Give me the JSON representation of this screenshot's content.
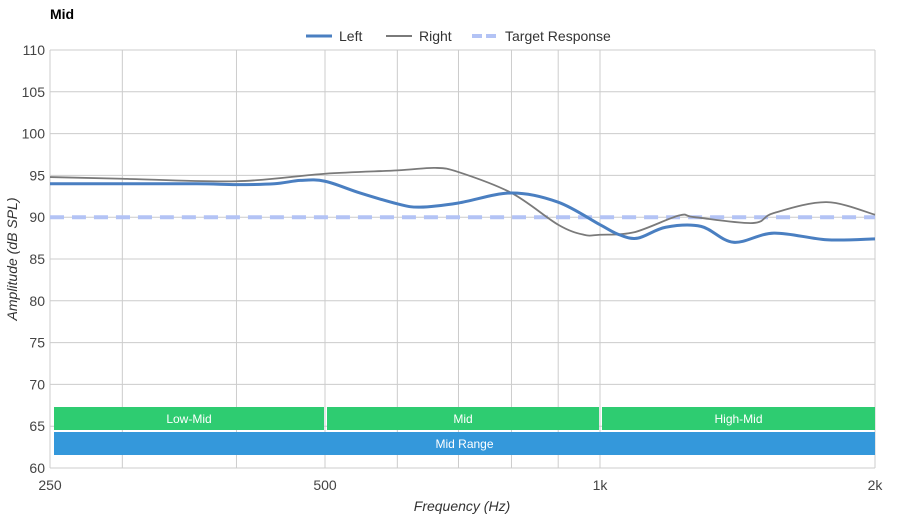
{
  "chart_data": {
    "type": "line",
    "title": "Mid",
    "xlabel": "Frequency (Hz)",
    "ylabel": "Amplitude (dB SPL)",
    "xscale": "log",
    "xlim": [
      250,
      2000
    ],
    "ylim": [
      60,
      110
    ],
    "grid": true,
    "legend_placement": "top-center",
    "x_ticks": [
      {
        "v": 250,
        "label": "250"
      },
      {
        "v": 500,
        "label": "500"
      },
      {
        "v": 1000,
        "label": "1k"
      },
      {
        "v": 2000,
        "label": "2k"
      }
    ],
    "x_minor_grid": [
      300,
      400,
      600,
      700,
      800,
      900
    ],
    "y_ticks": [
      60,
      65,
      70,
      75,
      80,
      85,
      90,
      95,
      100,
      105,
      110
    ],
    "series": [
      {
        "name": "Left",
        "color": "#4a7fc1",
        "style": "solid-thick",
        "x": [
          250,
          300,
          362,
          400,
          440,
          470,
          500,
          546,
          600,
          635,
          700,
          800,
          900,
          1000,
          1050,
          1100,
          1180,
          1290,
          1400,
          1550,
          1770,
          2000
        ],
        "y": [
          94.0,
          94.0,
          94.0,
          93.9,
          94.0,
          94.4,
          94.3,
          92.9,
          91.6,
          91.2,
          91.7,
          92.9,
          91.8,
          89.1,
          87.9,
          87.5,
          88.8,
          88.9,
          87.0,
          88.1,
          87.3,
          87.4
        ]
      },
      {
        "name": "Right",
        "color": "#7a7a7a",
        "style": "solid-thin",
        "x": [
          250,
          300,
          400,
          500,
          600,
          660,
          700,
          800,
          900,
          960,
          1000,
          1090,
          1220,
          1270,
          1470,
          1550,
          1770,
          2000
        ],
        "y": [
          94.8,
          94.6,
          94.3,
          95.2,
          95.6,
          95.9,
          95.4,
          92.9,
          89.1,
          87.9,
          87.9,
          88.2,
          90.2,
          90.0,
          89.3,
          90.5,
          91.8,
          90.3
        ]
      },
      {
        "name": "Target Response",
        "color": "#b3c3f5",
        "style": "dashed",
        "x": [
          250,
          2000
        ],
        "y": [
          90,
          90
        ]
      }
    ],
    "bands": [
      {
        "label": "Low-Mid",
        "from": 250,
        "to": 500,
        "color": "#2ecc71",
        "row": 0
      },
      {
        "label": "Mid",
        "from": 500,
        "to": 1000,
        "color": "#2ecc71",
        "row": 0
      },
      {
        "label": "High-Mid",
        "from": 1000,
        "to": 2000,
        "color": "#2ecc71",
        "row": 0
      },
      {
        "label": "Mid Range",
        "from": 250,
        "to": 2000,
        "color": "#3498db",
        "row": 1
      }
    ]
  }
}
